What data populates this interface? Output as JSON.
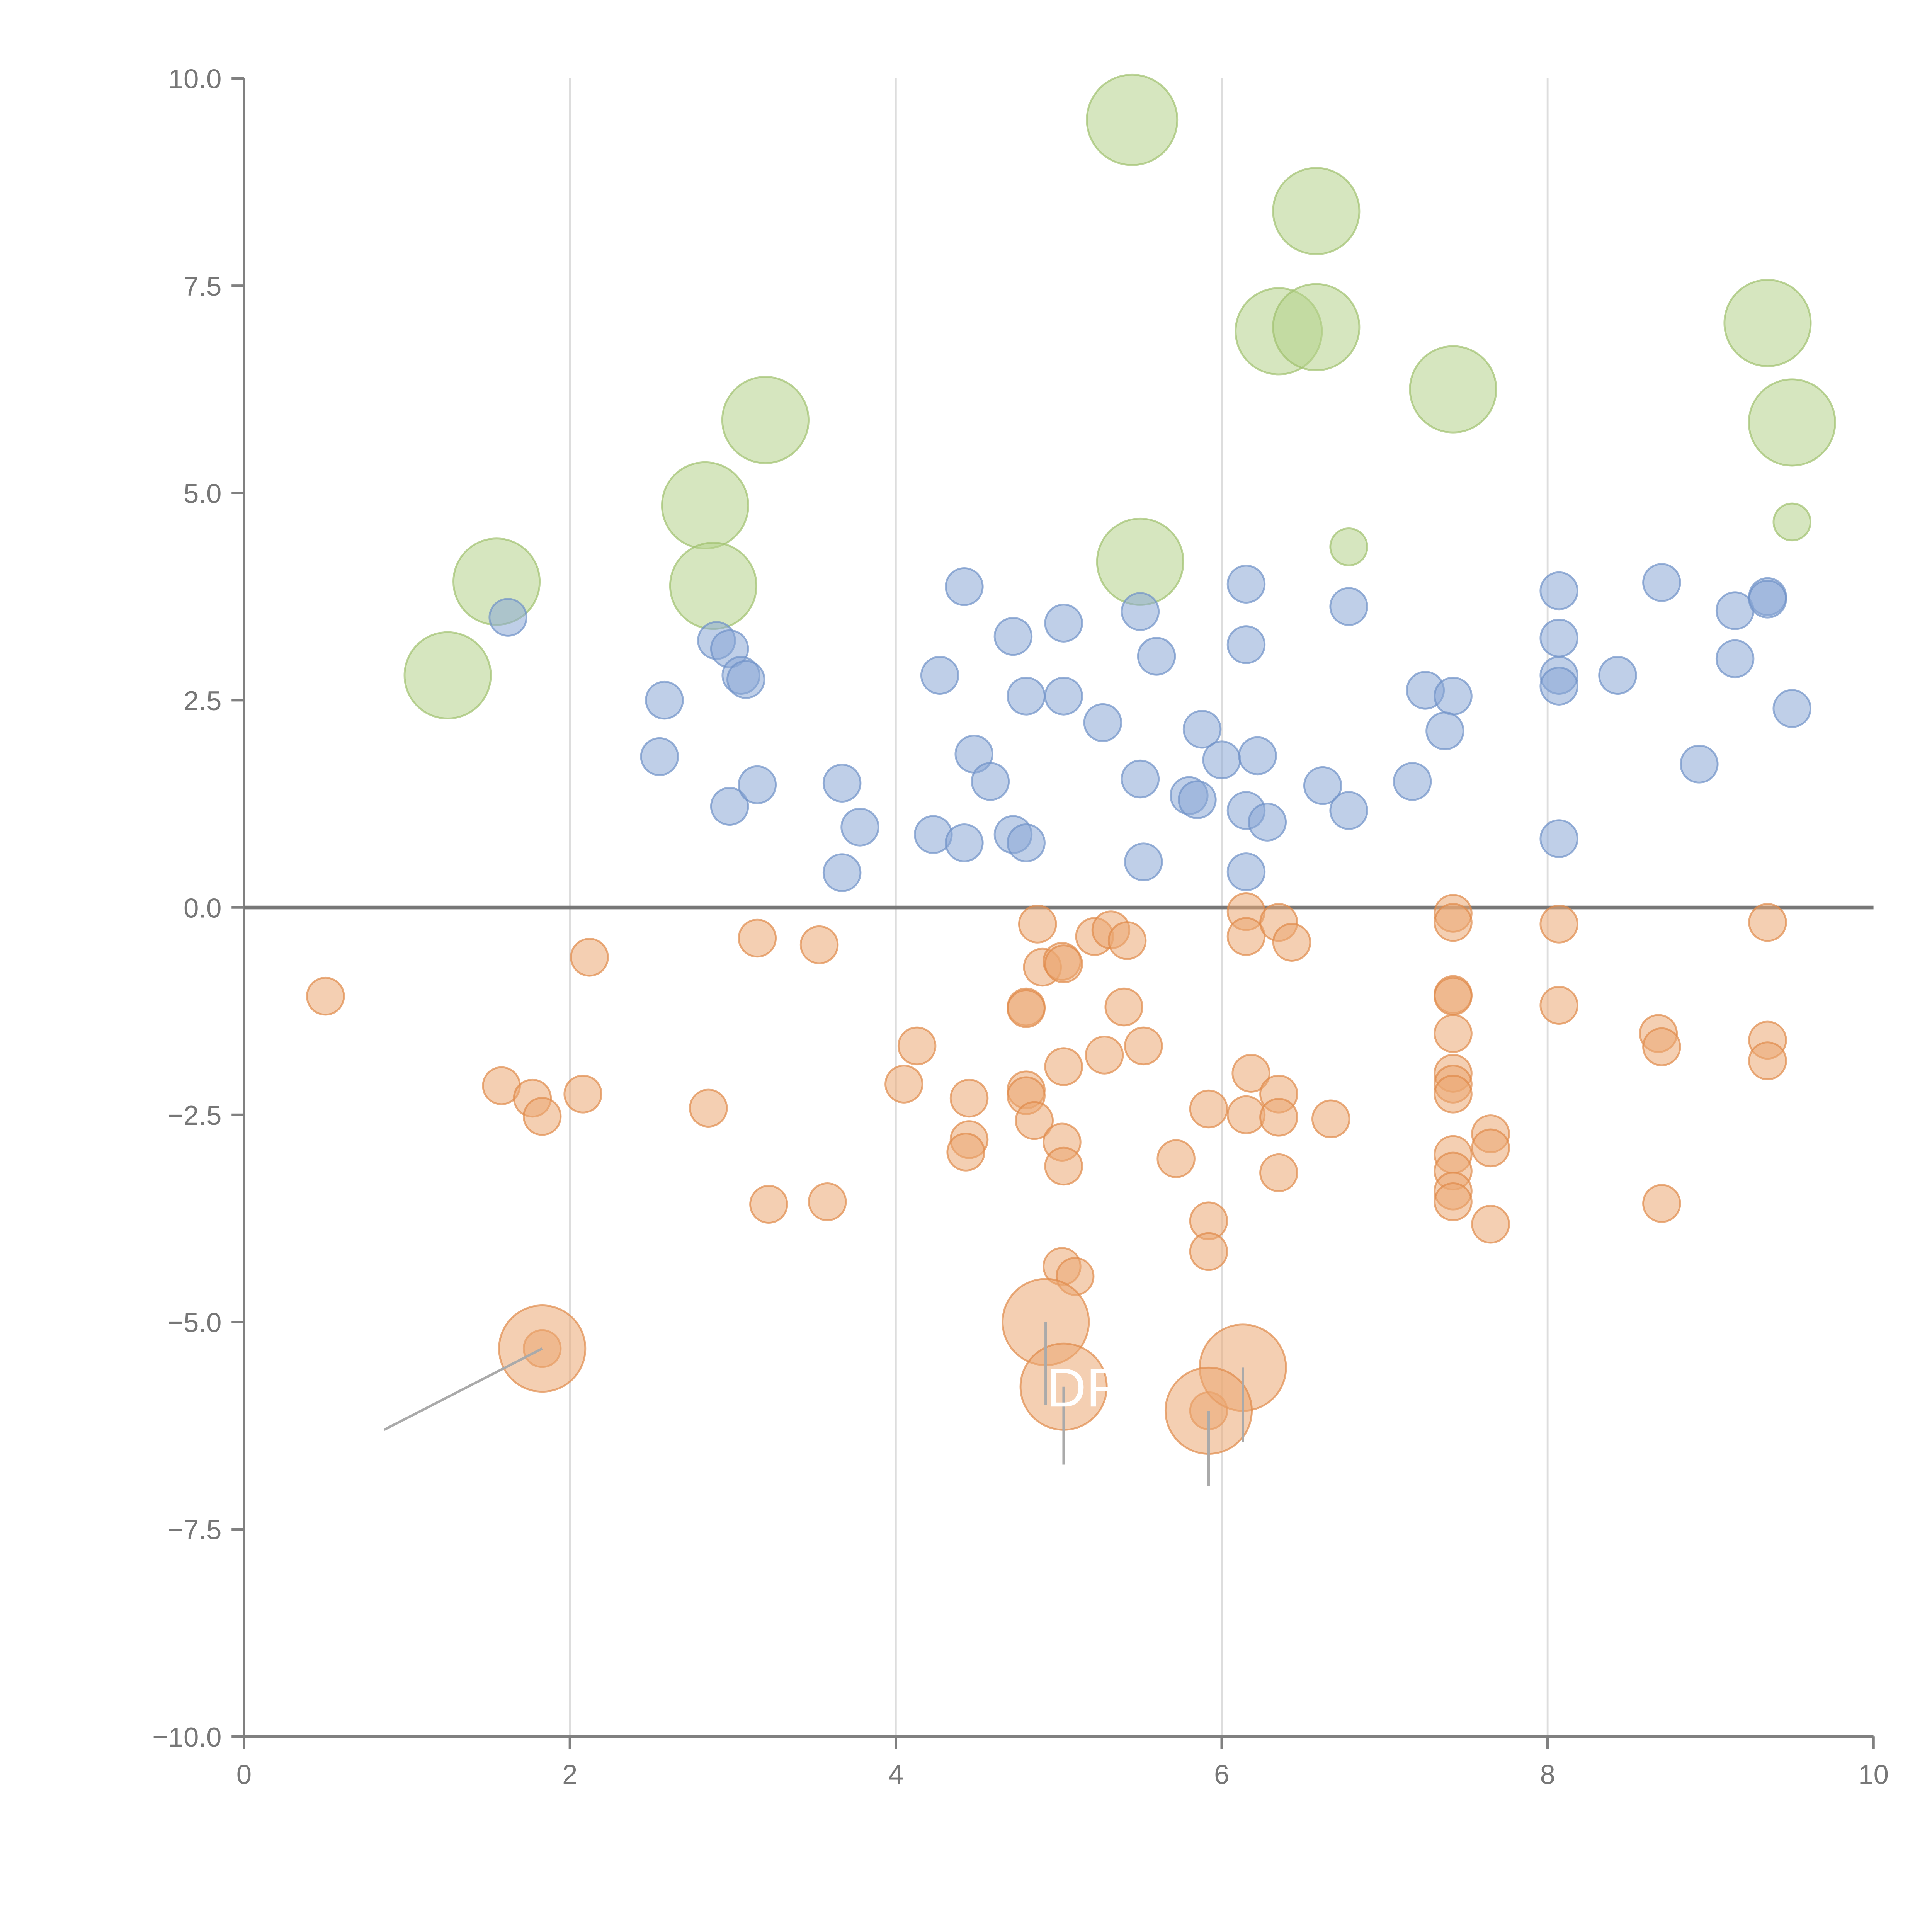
{
  "chart_data": {
    "type": "scatter",
    "title": "",
    "xlabel": "",
    "ylabel": "",
    "xlim": [
      0,
      10
    ],
    "ylim": [
      -10,
      10
    ],
    "x_ticks": [
      "0",
      "2",
      "4",
      "6",
      "8",
      "10"
    ],
    "y_ticks": [
      "10.0",
      "7.5",
      "5.0",
      "2.5",
      "0.0",
      "−2.5",
      "−5.0",
      "−7.5",
      "−10.0"
    ],
    "grid_x": [
      2,
      4,
      6,
      8
    ],
    "zero_line": 0,
    "series": [
      {
        "name": "green",
        "color": "#b5d18b",
        "stroke": "#9fc06e",
        "points": [
          [
            5.45,
            9.5,
            2.2
          ],
          [
            6.58,
            8.4,
            2.1
          ],
          [
            6.35,
            6.95,
            2.1
          ],
          [
            6.58,
            7.0,
            2.1
          ],
          [
            9.35,
            7.05,
            2.1
          ],
          [
            7.42,
            6.25,
            2.1
          ],
          [
            9.5,
            5.85,
            2.1
          ],
          [
            3.2,
            5.88,
            2.1
          ],
          [
            2.83,
            4.85,
            2.1
          ],
          [
            2.88,
            3.88,
            2.1
          ],
          [
            1.55,
            3.93,
            2.1
          ],
          [
            1.25,
            2.8,
            2.1
          ],
          [
            5.5,
            4.17,
            2.1
          ],
          [
            6.78,
            4.35,
            0.9
          ],
          [
            9.5,
            4.65,
            0.9
          ]
        ]
      },
      {
        "name": "blue",
        "color": "#8aa8d6",
        "stroke": "#6f91c8",
        "points": [
          [
            1.62,
            3.5,
            0.9
          ],
          [
            2.9,
            3.22,
            0.9
          ],
          [
            2.98,
            3.12,
            0.9
          ],
          [
            3.05,
            2.8,
            0.9
          ],
          [
            3.08,
            2.75,
            0.9
          ],
          [
            2.58,
            2.5,
            0.9
          ],
          [
            2.55,
            1.82,
            0.9
          ],
          [
            2.98,
            1.22,
            0.9
          ],
          [
            3.15,
            1.48,
            0.9
          ],
          [
            3.67,
            1.5,
            0.9
          ],
          [
            3.78,
            0.97,
            0.9
          ],
          [
            3.67,
            0.42,
            0.9
          ],
          [
            4.42,
            3.87,
            0.9
          ],
          [
            4.27,
            2.8,
            0.9
          ],
          [
            4.72,
            3.27,
            0.9
          ],
          [
            5.03,
            3.43,
            0.9
          ],
          [
            4.8,
            2.55,
            0.9
          ],
          [
            5.03,
            2.55,
            0.9
          ],
          [
            5.27,
            2.23,
            0.9
          ],
          [
            4.48,
            1.85,
            0.9
          ],
          [
            4.58,
            1.52,
            0.9
          ],
          [
            4.23,
            0.88,
            0.9
          ],
          [
            4.42,
            0.78,
            0.9
          ],
          [
            4.72,
            0.88,
            0.9
          ],
          [
            4.8,
            0.78,
            0.9
          ],
          [
            5.5,
            3.57,
            0.9
          ],
          [
            5.6,
            3.03,
            0.9
          ],
          [
            5.5,
            1.55,
            0.9
          ],
          [
            5.52,
            0.55,
            0.9
          ],
          [
            5.8,
            1.35,
            0.9
          ],
          [
            5.85,
            1.3,
            0.9
          ],
          [
            5.88,
            2.15,
            0.9
          ],
          [
            6.0,
            1.78,
            0.9
          ],
          [
            6.15,
            3.9,
            0.9
          ],
          [
            6.15,
            3.17,
            0.9
          ],
          [
            6.22,
            1.83,
            0.9
          ],
          [
            6.15,
            1.17,
            0.9
          ],
          [
            6.28,
            1.03,
            0.9
          ],
          [
            6.15,
            0.43,
            0.9
          ],
          [
            6.78,
            3.63,
            0.9
          ],
          [
            6.62,
            1.47,
            0.9
          ],
          [
            6.78,
            1.17,
            0.9
          ],
          [
            7.25,
            2.62,
            0.9
          ],
          [
            7.42,
            2.55,
            0.9
          ],
          [
            7.37,
            2.13,
            0.9
          ],
          [
            7.17,
            1.52,
            0.9
          ],
          [
            8.07,
            3.82,
            0.9
          ],
          [
            8.07,
            3.25,
            0.9
          ],
          [
            8.07,
            2.8,
            0.9
          ],
          [
            8.07,
            2.67,
            0.9
          ],
          [
            8.07,
            0.83,
            0.9
          ],
          [
            8.43,
            2.8,
            0.9
          ],
          [
            8.7,
            3.92,
            0.9
          ],
          [
            8.93,
            1.73,
            0.9
          ],
          [
            9.15,
            3.58,
            0.9
          ],
          [
            9.15,
            3.0,
            0.9
          ],
          [
            9.35,
            3.75,
            0.9
          ],
          [
            9.35,
            3.72,
            0.9
          ],
          [
            9.5,
            2.4,
            0.9
          ]
        ]
      },
      {
        "name": "orange",
        "color": "#eba873",
        "stroke": "#e08a4a",
        "points": [
          [
            0.5,
            -1.07,
            0.9
          ],
          [
            2.12,
            -0.6,
            0.9
          ],
          [
            1.58,
            -2.15,
            0.9
          ],
          [
            1.77,
            -2.3,
            0.9
          ],
          [
            1.83,
            -2.52,
            0.9
          ],
          [
            2.08,
            -2.25,
            0.9
          ],
          [
            2.85,
            -2.42,
            0.9
          ],
          [
            3.15,
            -0.37,
            0.9
          ],
          [
            3.53,
            -0.45,
            0.9
          ],
          [
            3.22,
            -3.58,
            0.9
          ],
          [
            3.58,
            -3.55,
            0.9
          ],
          [
            4.05,
            -2.13,
            0.9
          ],
          [
            4.13,
            -1.67,
            0.9
          ],
          [
            4.45,
            -2.3,
            0.9
          ],
          [
            4.45,
            -2.8,
            0.9
          ],
          [
            4.43,
            -2.95,
            0.9
          ],
          [
            4.8,
            -1.2,
            0.9
          ],
          [
            4.8,
            -1.22,
            0.9
          ],
          [
            4.8,
            -2.2,
            0.9
          ],
          [
            4.8,
            -2.27,
            0.9
          ],
          [
            4.85,
            -2.57,
            0.9
          ],
          [
            4.87,
            -0.2,
            0.9
          ],
          [
            4.9,
            -0.72,
            0.9
          ],
          [
            5.02,
            -0.65,
            0.9
          ],
          [
            5.03,
            -0.68,
            0.9
          ],
          [
            5.03,
            -1.92,
            0.9
          ],
          [
            5.02,
            -2.83,
            0.9
          ],
          [
            5.03,
            -3.12,
            0.9
          ],
          [
            5.02,
            -4.33,
            0.9
          ],
          [
            5.1,
            -4.45,
            0.9
          ],
          [
            5.22,
            -0.35,
            0.9
          ],
          [
            5.32,
            -0.27,
            0.9
          ],
          [
            5.42,
            -0.4,
            0.9
          ],
          [
            5.4,
            -1.2,
            0.9
          ],
          [
            5.28,
            -1.78,
            0.9
          ],
          [
            5.52,
            -1.67,
            0.9
          ],
          [
            5.72,
            -3.03,
            0.9
          ],
          [
            5.92,
            -2.43,
            0.9
          ],
          [
            5.92,
            -3.78,
            0.9
          ],
          [
            5.92,
            -4.15,
            0.9
          ],
          [
            6.15,
            -0.05,
            0.9
          ],
          [
            6.15,
            -0.35,
            0.9
          ],
          [
            6.35,
            -0.18,
            0.9
          ],
          [
            6.43,
            -0.42,
            0.9
          ],
          [
            6.18,
            -2.0,
            0.9
          ],
          [
            6.15,
            -2.5,
            0.9
          ],
          [
            6.35,
            -2.25,
            0.9
          ],
          [
            6.35,
            -2.53,
            0.9
          ],
          [
            6.67,
            -2.55,
            0.9
          ],
          [
            6.35,
            -3.2,
            0.9
          ],
          [
            7.42,
            -0.07,
            0.9
          ],
          [
            7.42,
            -0.18,
            0.9
          ],
          [
            7.42,
            -1.05,
            0.9
          ],
          [
            7.42,
            -1.07,
            0.9
          ],
          [
            7.42,
            -1.52,
            0.9
          ],
          [
            7.42,
            -2.0,
            0.9
          ],
          [
            7.42,
            -2.13,
            0.9
          ],
          [
            7.42,
            -2.25,
            0.9
          ],
          [
            7.42,
            -2.98,
            0.9
          ],
          [
            7.42,
            -3.18,
            0.9
          ],
          [
            7.42,
            -3.42,
            0.9
          ],
          [
            7.42,
            -3.55,
            0.9
          ],
          [
            7.65,
            -2.73,
            0.9
          ],
          [
            7.65,
            -2.9,
            0.9
          ],
          [
            7.65,
            -3.82,
            0.9
          ],
          [
            8.07,
            -0.2,
            0.9
          ],
          [
            8.07,
            -1.18,
            0.9
          ],
          [
            8.68,
            -1.52,
            0.9
          ],
          [
            8.7,
            -1.68,
            0.9
          ],
          [
            8.7,
            -3.57,
            0.9
          ],
          [
            9.35,
            -0.18,
            0.9
          ],
          [
            9.35,
            -1.6,
            0.9
          ],
          [
            9.35,
            -1.85,
            0.9
          ],
          [
            1.83,
            -5.32,
            0.9
          ],
          [
            5.92,
            -6.07,
            0.9
          ],
          [
            1.83,
            -5.32,
            2.1
          ],
          [
            4.92,
            -5.0,
            2.1
          ],
          [
            5.03,
            -5.78,
            2.1
          ],
          [
            6.13,
            -5.55,
            2.1
          ],
          [
            5.92,
            -6.07,
            2.1
          ]
        ]
      }
    ],
    "annotations": [
      {
        "text": "DF",
        "x": 5.15,
        "y": -5.78
      }
    ]
  }
}
